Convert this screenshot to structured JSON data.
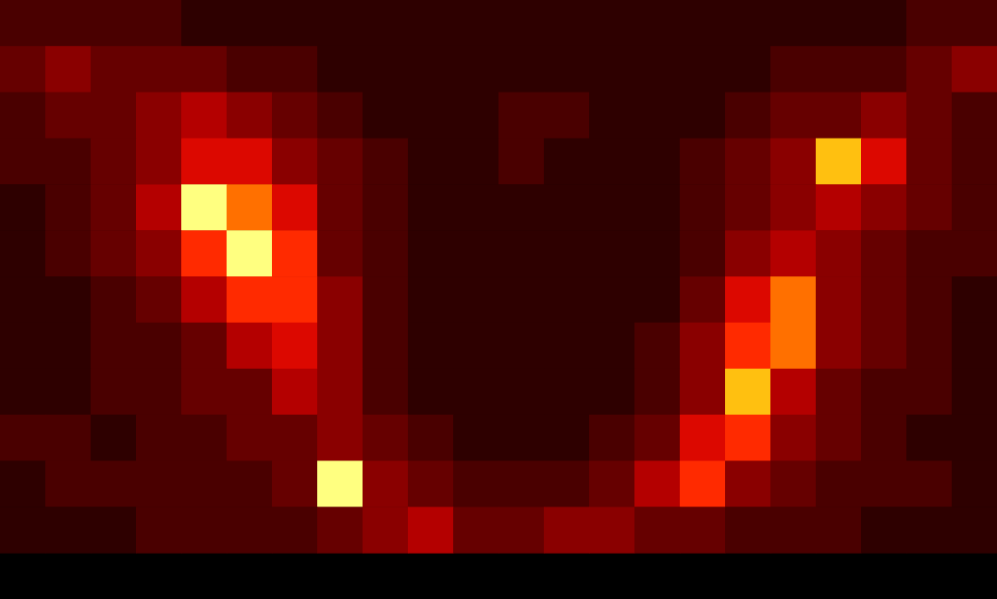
{
  "chart_data": {
    "type": "heatmap",
    "tick_labels": false,
    "grid": false,
    "zlim": [
      0,
      10
    ],
    "cells": [
      [
        2,
        2,
        2,
        2,
        1,
        1,
        1,
        1,
        1,
        1,
        1,
        1,
        1,
        1,
        1,
        1,
        1,
        1,
        1,
        1,
        2,
        2
      ],
      [
        3,
        4,
        3,
        3,
        3,
        2,
        2,
        1,
        1,
        1,
        1,
        1,
        1,
        1,
        1,
        1,
        1,
        2,
        2,
        2,
        3,
        4
      ],
      [
        2,
        3,
        3,
        4,
        5,
        4,
        3,
        2,
        1,
        1,
        1,
        2,
        2,
        1,
        1,
        1,
        2,
        3,
        3,
        4,
        3,
        2
      ],
      [
        2,
        2,
        3,
        4,
        6,
        6,
        4,
        3,
        2,
        1,
        1,
        2,
        1,
        1,
        1,
        2,
        3,
        4,
        9,
        6,
        3,
        2
      ],
      [
        1,
        2,
        3,
        5,
        10,
        8,
        6,
        3,
        2,
        1,
        1,
        1,
        1,
        1,
        1,
        2,
        3,
        4,
        5,
        4,
        3,
        2
      ],
      [
        1,
        2,
        3,
        4,
        7,
        10,
        7,
        3,
        2,
        1,
        1,
        1,
        1,
        1,
        1,
        2,
        4,
        5,
        4,
        3,
        2,
        2
      ],
      [
        1,
        1,
        2,
        3,
        5,
        7,
        7,
        4,
        2,
        1,
        1,
        1,
        1,
        1,
        1,
        3,
        6,
        8,
        4,
        3,
        2,
        1
      ],
      [
        1,
        1,
        2,
        2,
        3,
        5,
        6,
        4,
        2,
        1,
        1,
        1,
        1,
        1,
        2,
        4,
        7,
        8,
        4,
        3,
        2,
        1
      ],
      [
        1,
        1,
        2,
        2,
        3,
        3,
        5,
        4,
        2,
        1,
        1,
        1,
        1,
        1,
        2,
        4,
        9,
        5,
        3,
        2,
        2,
        1
      ],
      [
        2,
        2,
        1,
        2,
        2,
        3,
        3,
        4,
        3,
        2,
        1,
        1,
        1,
        2,
        3,
        6,
        7,
        4,
        3,
        2,
        1,
        1
      ],
      [
        1,
        2,
        2,
        2,
        2,
        2,
        3,
        10,
        4,
        3,
        2,
        2,
        2,
        3,
        5,
        7,
        4,
        3,
        2,
        2,
        2,
        1
      ],
      [
        1,
        1,
        1,
        2,
        2,
        2,
        2,
        3,
        4,
        5,
        3,
        3,
        4,
        4,
        3,
        3,
        2,
        2,
        2,
        1,
        1,
        1
      ],
      [
        null,
        null,
        null,
        null,
        null,
        null,
        null,
        null,
        null,
        null,
        null,
        null,
        null,
        null,
        null,
        null,
        null,
        null,
        null,
        null,
        null,
        null
      ]
    ]
  }
}
